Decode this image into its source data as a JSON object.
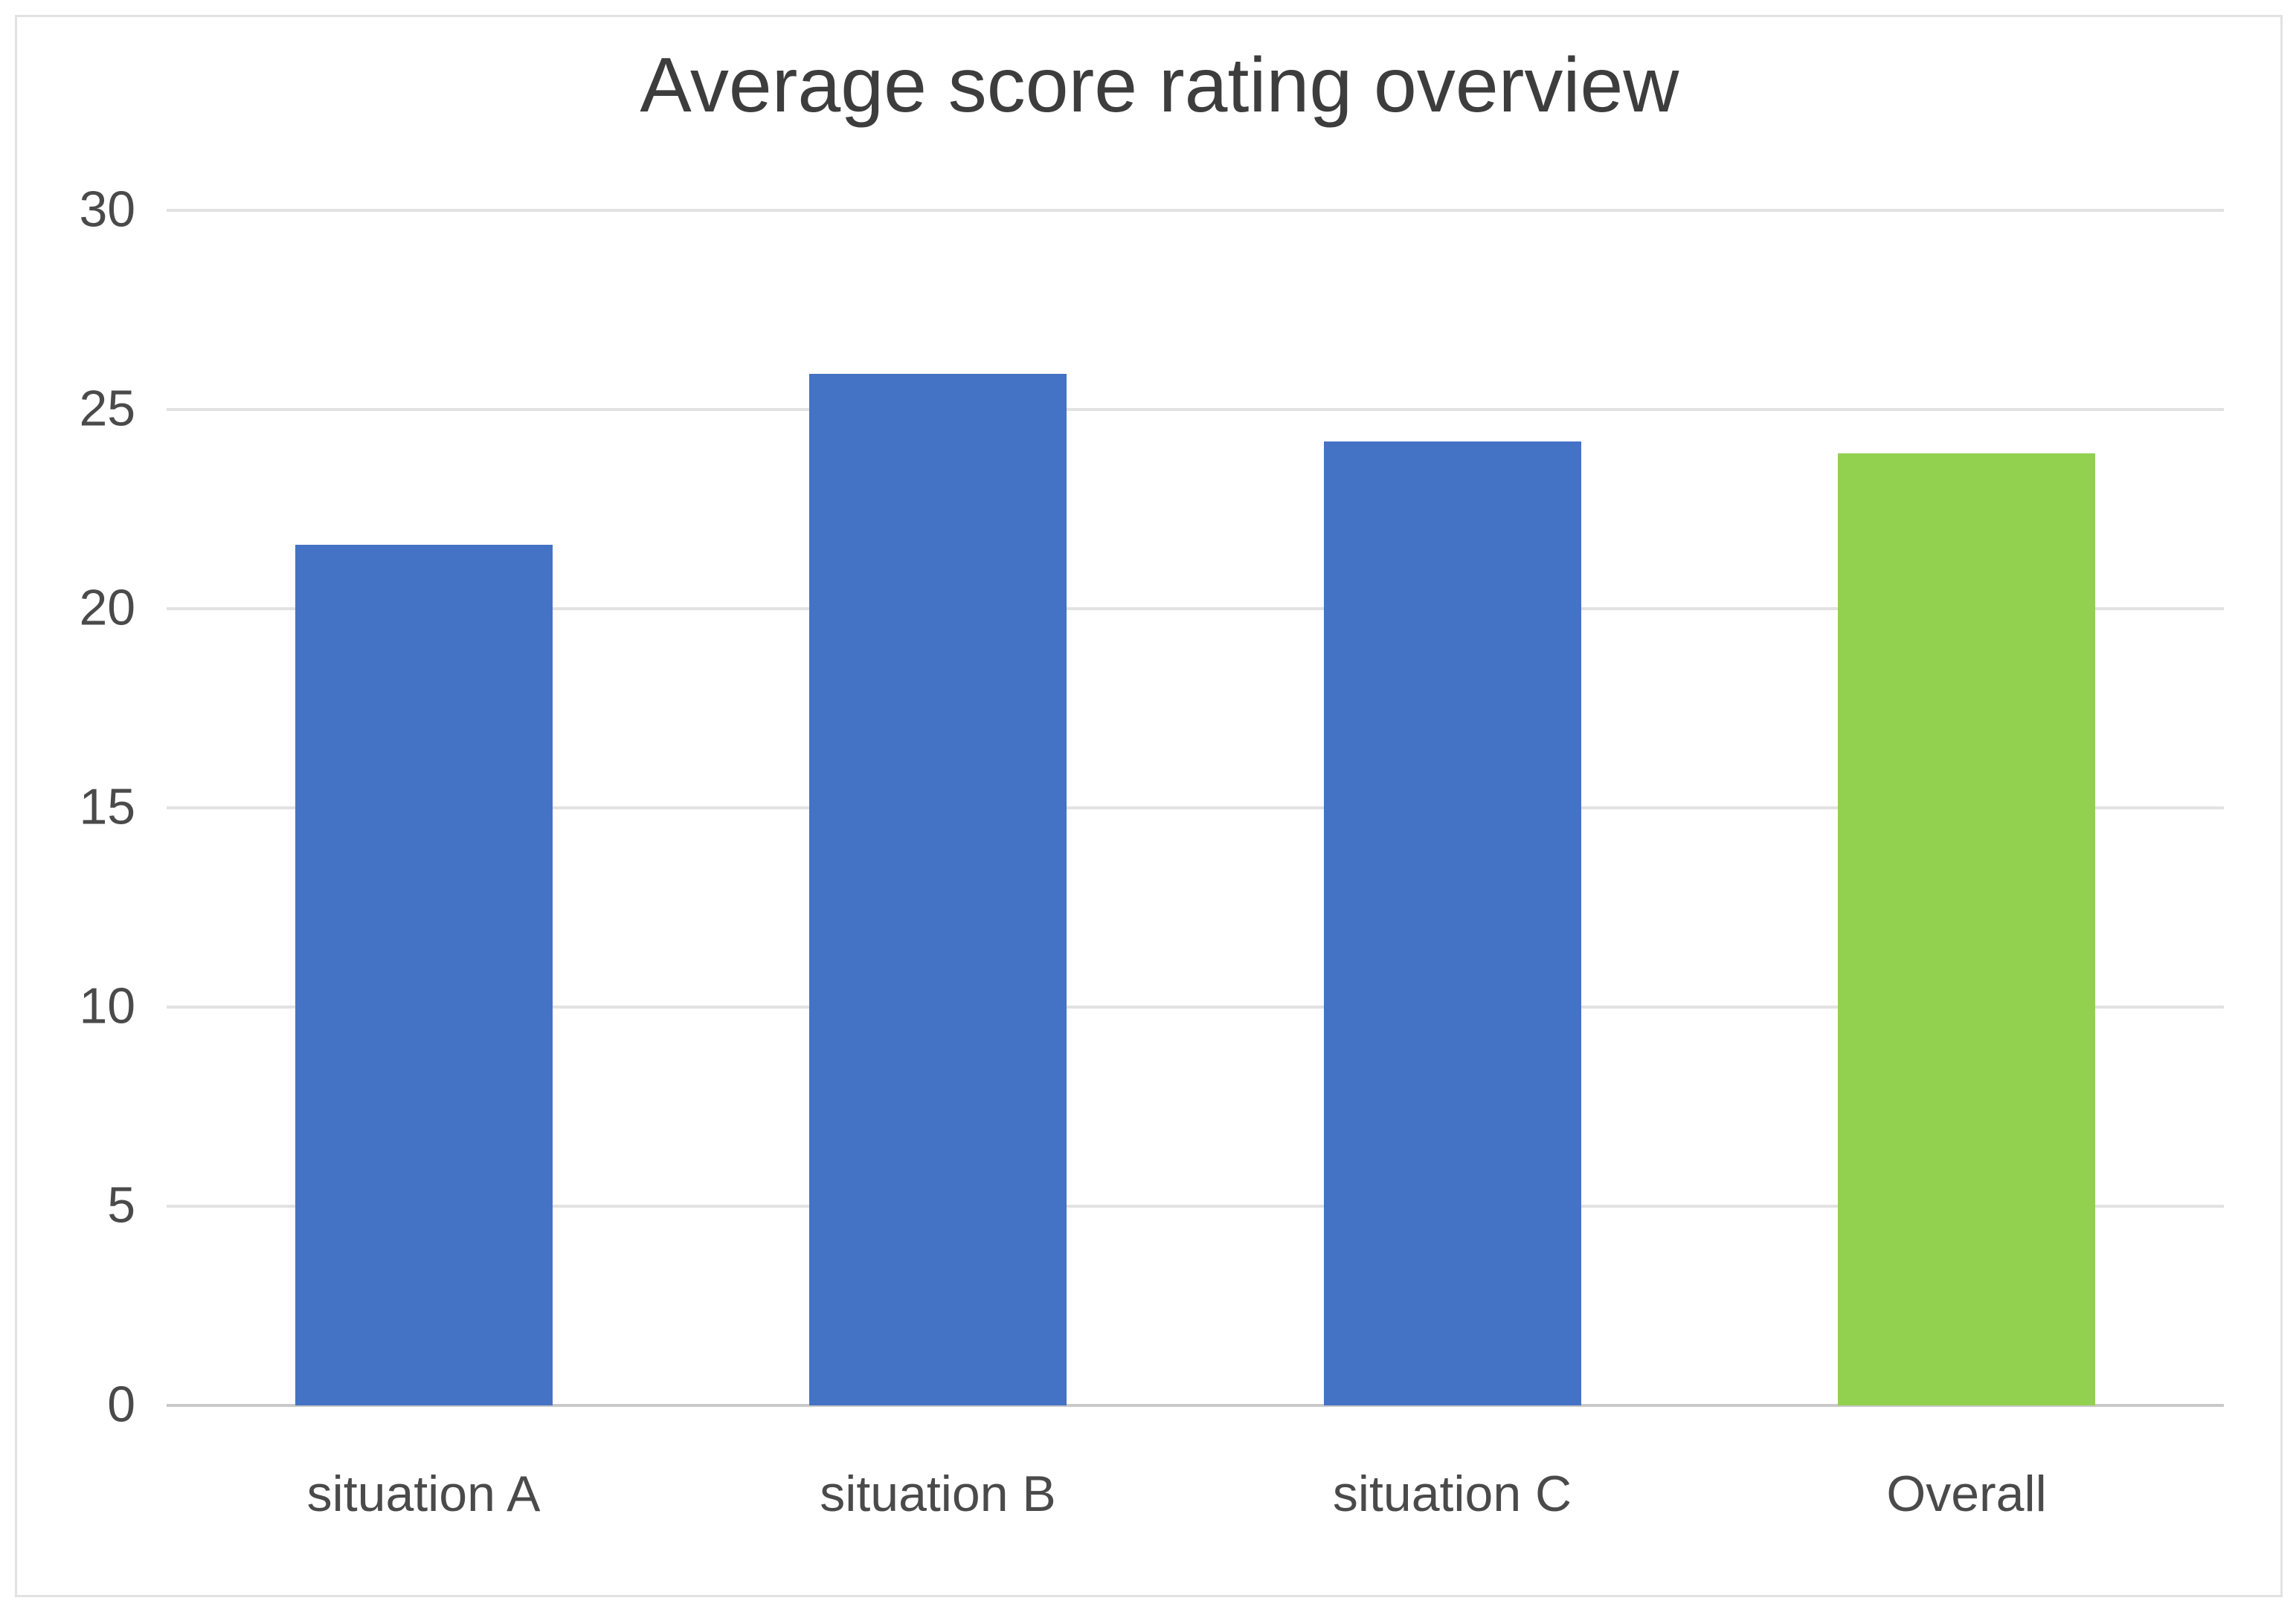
{
  "chart_data": {
    "type": "bar",
    "title": "Average score rating overview",
    "categories": [
      "situation A",
      "situation B",
      "situation C",
      "Overall"
    ],
    "values": [
      21.6,
      25.9,
      24.2,
      23.9
    ],
    "bar_colors": [
      "#4472c4",
      "#4472c4",
      "#4472c4",
      "#92d050"
    ],
    "xlabel": "",
    "ylabel": "",
    "ylim": [
      0,
      30
    ],
    "yticks": [
      0,
      5,
      10,
      15,
      20,
      25,
      30
    ],
    "grid": "horizontal",
    "legend_position": "none"
  },
  "palette": {
    "bar_blue": "#4472c4",
    "bar_green": "#92d050",
    "gridline": "#e2e2e2",
    "baseline": "#c9c9c9",
    "text": "#4a4a4a",
    "title_text": "#3d3d3d",
    "frame_border": "#e2e2e2",
    "background": "#ffffff"
  }
}
